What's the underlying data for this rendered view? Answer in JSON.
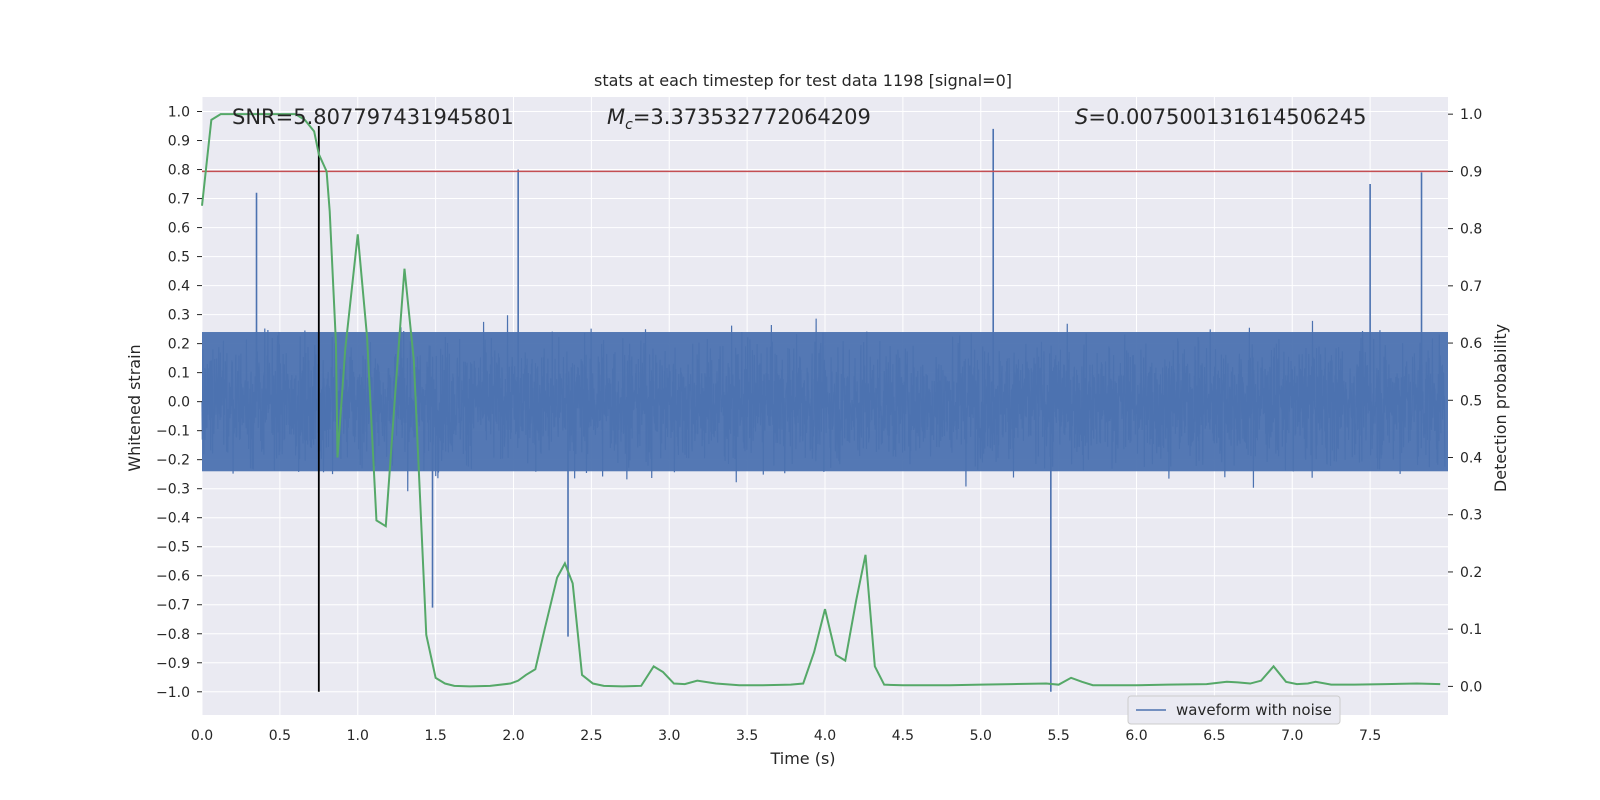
{
  "chart_data": {
    "type": "line",
    "title": "stats at each timestep for test data 1198 [signal=0]",
    "xlabel": "Time (s)",
    "ylabel_left": "Whitened strain",
    "ylabel_right": "Detection probability",
    "xlim": [
      0.0,
      8.0
    ],
    "ylim_left": [
      -1.08,
      1.05
    ],
    "ylim_right": [
      -0.05,
      1.03
    ],
    "x_ticks": [
      "0.0",
      "0.5",
      "1.0",
      "1.5",
      "2.0",
      "2.5",
      "3.0",
      "3.5",
      "4.0",
      "4.5",
      "5.0",
      "5.5",
      "6.0",
      "6.5",
      "7.0",
      "7.5"
    ],
    "y_left_ticks": [
      "1.0",
      "0.9",
      "0.8",
      "0.7",
      "0.6",
      "0.5",
      "0.4",
      "0.3",
      "0.2",
      "0.1",
      "0.0",
      "−0.1",
      "−0.2",
      "−0.3",
      "−0.4",
      "−0.5",
      "−0.6",
      "−0.7",
      "−0.8",
      "−0.9",
      "−1.0"
    ],
    "y_right_ticks": [
      "1.0",
      "0.9",
      "0.8",
      "0.7",
      "0.6",
      "0.5",
      "0.4",
      "0.3",
      "0.2",
      "0.1",
      "0.0"
    ],
    "grid": true,
    "legend_position": "lower-right",
    "annotations": {
      "snr": "SNR=5.807797431945801",
      "mc_symbol": "M",
      "mc_sub": "c",
      "mc_value": "=3.373532772064209",
      "s_symbol": "S",
      "s_value": "=0.007500131614506245"
    },
    "threshold": {
      "axis": "right",
      "y": 0.9,
      "color": "#c44e52"
    },
    "marker_line": {
      "x": 0.75,
      "y_top": 0.95,
      "y_bottom": -1.0,
      "color": "#000000"
    },
    "series": [
      {
        "name": "waveform with noise",
        "axis": "left",
        "color": "#4c72b0",
        "kind": "dense-noise",
        "envelope_upper": 0.4,
        "envelope_lower": -0.4,
        "spikes": [
          {
            "x": 2.03,
            "y": 0.8
          },
          {
            "x": 5.08,
            "y": 0.94
          },
          {
            "x": 7.83,
            "y": 0.79
          },
          {
            "x": 7.5,
            "y": 0.75
          },
          {
            "x": 0.35,
            "y": 0.72
          },
          {
            "x": 2.35,
            "y": -0.81
          },
          {
            "x": 5.45,
            "y": -1.0
          },
          {
            "x": 1.48,
            "y": -0.71
          }
        ]
      },
      {
        "axis": "right",
        "color": "#55a868",
        "x": [
          0.0,
          0.06,
          0.12,
          0.2,
          0.3,
          0.4,
          0.5,
          0.6,
          0.66,
          0.72,
          0.75,
          0.8,
          0.82,
          0.86,
          0.87,
          0.92,
          1.0,
          1.06,
          1.12,
          1.18,
          1.24,
          1.3,
          1.36,
          1.44,
          1.5,
          1.56,
          1.62,
          1.72,
          1.85,
          1.98,
          2.03,
          2.08,
          2.14,
          2.2,
          2.28,
          2.33,
          2.38,
          2.44,
          2.51,
          2.58,
          2.7,
          2.82,
          2.9,
          2.96,
          3.03,
          3.1,
          3.18,
          3.3,
          3.45,
          3.6,
          3.78,
          3.86,
          3.93,
          4.0,
          4.07,
          4.13,
          4.2,
          4.26,
          4.32,
          4.38,
          4.5,
          4.65,
          4.8,
          5.0,
          5.2,
          5.42,
          5.5,
          5.58,
          5.65,
          5.72,
          5.85,
          6.0,
          6.2,
          6.45,
          6.58,
          6.65,
          6.73,
          6.8,
          6.88,
          6.96,
          7.03,
          7.1,
          7.15,
          7.25,
          7.4,
          7.6,
          7.8,
          7.95
        ],
        "y": [
          0.84,
          0.99,
          1.0,
          1.0,
          1.0,
          1.0,
          1.0,
          1.0,
          0.99,
          0.97,
          0.93,
          0.9,
          0.83,
          0.6,
          0.4,
          0.59,
          0.79,
          0.61,
          0.29,
          0.28,
          0.51,
          0.73,
          0.57,
          0.09,
          0.015,
          0.005,
          0.001,
          0.0,
          0.001,
          0.005,
          0.01,
          0.02,
          0.03,
          0.1,
          0.19,
          0.215,
          0.18,
          0.02,
          0.005,
          0.001,
          0.0,
          0.001,
          0.035,
          0.025,
          0.005,
          0.004,
          0.01,
          0.005,
          0.002,
          0.002,
          0.003,
          0.005,
          0.06,
          0.135,
          0.055,
          0.045,
          0.15,
          0.23,
          0.035,
          0.003,
          0.002,
          0.002,
          0.002,
          0.003,
          0.004,
          0.005,
          0.003,
          0.015,
          0.008,
          0.002,
          0.002,
          0.002,
          0.003,
          0.004,
          0.008,
          0.007,
          0.005,
          0.01,
          0.035,
          0.008,
          0.004,
          0.005,
          0.008,
          0.003,
          0.003,
          0.004,
          0.005,
          0.004
        ]
      }
    ]
  }
}
